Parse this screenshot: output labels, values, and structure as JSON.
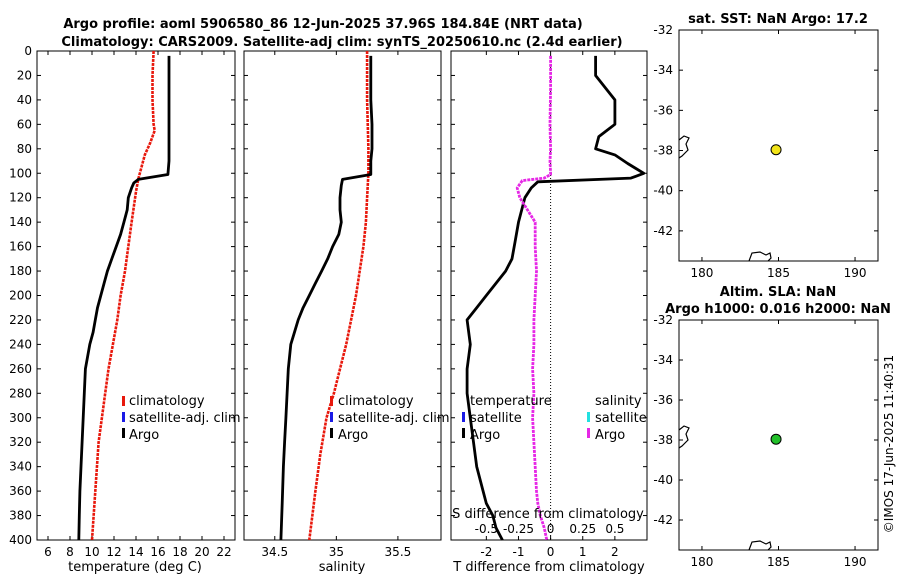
{
  "title_line1": "Argo profile: aoml 5906580_86 12-Jun-2025 37.96S 184.84E (NRT data)",
  "title_line2": "Climatology: CARS2009. Satellite-adj clim: synTS_20250610.nc (2.4d earlier)",
  "side_text": "©IMOS 17-Jun-2025 11:40:31",
  "colors": {
    "climatology": "#e8180c",
    "satellite": "#1a1ae6",
    "argo": "#000000",
    "sat_cyan": "#22e0e0",
    "argo_sal": "#e628e6",
    "sst_dot": "#f2e418",
    "sla_dot": "#22c02a"
  },
  "chart_data": [
    {
      "id": "temperature",
      "type": "line",
      "xlabel": "temperature (deg C)",
      "ylabel": "",
      "title": "",
      "xlim": [
        5,
        23
      ],
      "ylim": [
        0,
        400
      ],
      "y_reversed": true,
      "xticks": [
        6,
        8,
        10,
        12,
        14,
        16,
        18,
        20,
        22
      ],
      "xtick_labels": [
        "6",
        "8",
        "10",
        "12",
        "14",
        "16",
        "18",
        "20",
        "22"
      ],
      "yticks": [
        0,
        20,
        40,
        60,
        80,
        100,
        120,
        140,
        160,
        180,
        200,
        220,
        240,
        260,
        280,
        300,
        320,
        340,
        360,
        380,
        400
      ],
      "ytick_labels": [
        "0",
        "20",
        "40",
        "60",
        "80",
        "100",
        "120",
        "140",
        "160",
        "180",
        "200",
        "220",
        "240",
        "260",
        "280",
        "300",
        "320",
        "340",
        "360",
        "380",
        "400"
      ],
      "legend": [
        "climatology",
        "satellite-adj. clim",
        "Argo"
      ],
      "series": [
        {
          "name": "climatology",
          "color": "#e8180c",
          "x": [
            15.6,
            15.5,
            15.5,
            15.6,
            15.7,
            15.3,
            14.8,
            14.5,
            14.2,
            14.0,
            13.6,
            13.3,
            13.0,
            12.6,
            12.3,
            11.9,
            11.5,
            11.2,
            10.9,
            10.6,
            10.3,
            10.0
          ],
          "y": [
            0,
            20,
            40,
            60,
            65,
            75,
            85,
            95,
            105,
            115,
            140,
            160,
            180,
            200,
            220,
            240,
            260,
            280,
            300,
            320,
            360,
            400
          ]
        },
        {
          "name": "Argo",
          "color": "#000000",
          "x": [
            17.0,
            17.0,
            17.0,
            17.0,
            17.0,
            17.0,
            16.9,
            14.2,
            13.8,
            13.6,
            13.3,
            13.2,
            12.9,
            12.6,
            12.2,
            11.8,
            11.4,
            11.1,
            10.8,
            10.5,
            10.3,
            10.1,
            9.8,
            9.6,
            9.4,
            9.3,
            9.2,
            9.1,
            9.0,
            8.9,
            8.85,
            8.8
          ],
          "y": [
            4,
            20,
            40,
            60,
            80,
            90,
            101,
            105,
            108,
            112,
            120,
            130,
            140,
            150,
            160,
            170,
            180,
            190,
            200,
            210,
            220,
            230,
            240,
            250,
            260,
            280,
            300,
            320,
            340,
            360,
            380,
            400
          ]
        }
      ]
    },
    {
      "id": "salinity",
      "type": "line",
      "xlabel": "salinity",
      "title": "",
      "xlim": [
        34.25,
        35.85
      ],
      "ylim": [
        0,
        400
      ],
      "y_reversed": true,
      "xticks": [
        34.5,
        35,
        35.5
      ],
      "xtick_labels": [
        "34.5",
        "35",
        "35.5"
      ],
      "legend": [
        "climatology",
        "satellite-adj. clim",
        "Argo"
      ],
      "series": [
        {
          "name": "climatology",
          "color": "#e8180c",
          "x": [
            35.25,
            35.25,
            35.26,
            35.26,
            35.25,
            35.24,
            35.22,
            35.19,
            35.16,
            35.12,
            35.08,
            35.03,
            34.98,
            34.92,
            34.87,
            34.83,
            34.78
          ],
          "y": [
            0,
            40,
            80,
            100,
            120,
            140,
            160,
            180,
            200,
            220,
            240,
            260,
            280,
            300,
            330,
            360,
            400
          ]
        },
        {
          "name": "Argo",
          "color": "#000000",
          "x": [
            35.28,
            35.28,
            35.28,
            35.29,
            35.29,
            35.28,
            35.28,
            35.05,
            35.04,
            35.03,
            35.03,
            35.04,
            35.02,
            34.97,
            34.93,
            34.88,
            34.83,
            34.78,
            34.73,
            34.69,
            34.66,
            34.63,
            34.61,
            34.6,
            34.59,
            34.58,
            34.57,
            34.56,
            34.55
          ],
          "y": [
            4,
            20,
            40,
            60,
            80,
            90,
            101,
            105,
            110,
            120,
            130,
            140,
            150,
            160,
            170,
            180,
            190,
            200,
            210,
            220,
            230,
            240,
            260,
            280,
            300,
            320,
            340,
            370,
            400
          ]
        }
      ]
    },
    {
      "id": "difference",
      "type": "line",
      "xlabel": "T difference from climatology",
      "top_label": "S difference from climatology",
      "xlim": [
        -3.1,
        3.0
      ],
      "ylim": [
        0,
        400
      ],
      "y_reversed": true,
      "xticks": [
        -2,
        -1,
        0,
        1,
        2
      ],
      "xtick_labels": [
        "-2",
        "-1",
        "0",
        "1",
        "2"
      ],
      "top_ticks": [
        -0.5,
        -0.25,
        0,
        0.25,
        0.5
      ],
      "top_tick_labels": [
        "-0.5",
        "-0.25",
        "0",
        "0.25",
        "0.5"
      ],
      "top_xlim": [
        -0.775,
        0.75
      ],
      "legend_temperature": [
        "temperature",
        "satellite",
        "Argo"
      ],
      "legend_salinity": [
        "salinity",
        "satellite",
        "Argo"
      ],
      "series": [
        {
          "name": "T difference Argo",
          "color": "#000000",
          "x": [
            1.4,
            1.4,
            2.0,
            2.0,
            1.5,
            1.4,
            2.0,
            2.4,
            2.9,
            2.5,
            -0.4,
            -0.6,
            -0.8,
            -1.0,
            -1.1,
            -1.2,
            -1.4,
            -1.7,
            -2.0,
            -2.3,
            -2.6,
            -2.5,
            -2.6,
            -2.6,
            -2.5,
            -2.4,
            -2.3,
            -2.1,
            -2.0,
            -1.8,
            -1.7,
            -1.5
          ],
          "y": [
            4,
            20,
            40,
            60,
            70,
            80,
            85,
            92,
            100,
            104,
            107,
            112,
            120,
            140,
            155,
            170,
            180,
            190,
            200,
            210,
            220,
            240,
            260,
            280,
            300,
            320,
            340,
            360,
            370,
            380,
            390,
            400
          ]
        },
        {
          "name": "S difference Argo",
          "color": "#e628e6",
          "x": [
            0.0,
            0.0,
            -0.005,
            0.0,
            -0.005,
            0.0,
            0.0,
            -0.05,
            -0.22,
            -0.26,
            -0.24,
            -0.12,
            -0.12,
            -0.11,
            -0.12,
            -0.13,
            -0.13,
            -0.14,
            -0.13,
            -0.14,
            -0.13,
            -0.12,
            -0.11,
            -0.1,
            -0.08,
            -0.05,
            -0.03
          ],
          "y": [
            4,
            30,
            60,
            80,
            90,
            100,
            101,
            104,
            106,
            112,
            120,
            140,
            160,
            180,
            200,
            220,
            240,
            260,
            280,
            300,
            320,
            340,
            360,
            370,
            380,
            390,
            400
          ]
        }
      ]
    },
    {
      "id": "sst_map",
      "type": "scatter",
      "title": "sat. SST: NaN Argo: 17.2",
      "xlim": [
        178.5,
        191.5
      ],
      "ylim": [
        -43.5,
        -32
      ],
      "xticks": [
        180,
        185,
        190
      ],
      "xtick_labels": [
        "180",
        "185",
        "190"
      ],
      "yticks": [
        -42,
        -40,
        -38,
        -36,
        -34,
        -32
      ],
      "ytick_labels": [
        "-42",
        "-40",
        "-38",
        "-36",
        "-34",
        "-32"
      ],
      "points": [
        {
          "x": 184.84,
          "y": -37.96,
          "color": "#f2e418"
        }
      ]
    },
    {
      "id": "sla_map",
      "type": "scatter",
      "title_line1": "Altim. SLA: NaN",
      "title_line2": "Argo h1000: 0.016 h2000: NaN",
      "xlim": [
        178.5,
        191.5
      ],
      "ylim": [
        -43.5,
        -32
      ],
      "xticks": [
        180,
        185,
        190
      ],
      "xtick_labels": [
        "180",
        "185",
        "190"
      ],
      "yticks": [
        -42,
        -40,
        -38,
        -36,
        -34,
        -32
      ],
      "ytick_labels": [
        "-42",
        "-40",
        "-38",
        "-36",
        "-34",
        "-32"
      ],
      "points": [
        {
          "x": 184.84,
          "y": -37.96,
          "color": "#22c02a"
        }
      ]
    }
  ]
}
